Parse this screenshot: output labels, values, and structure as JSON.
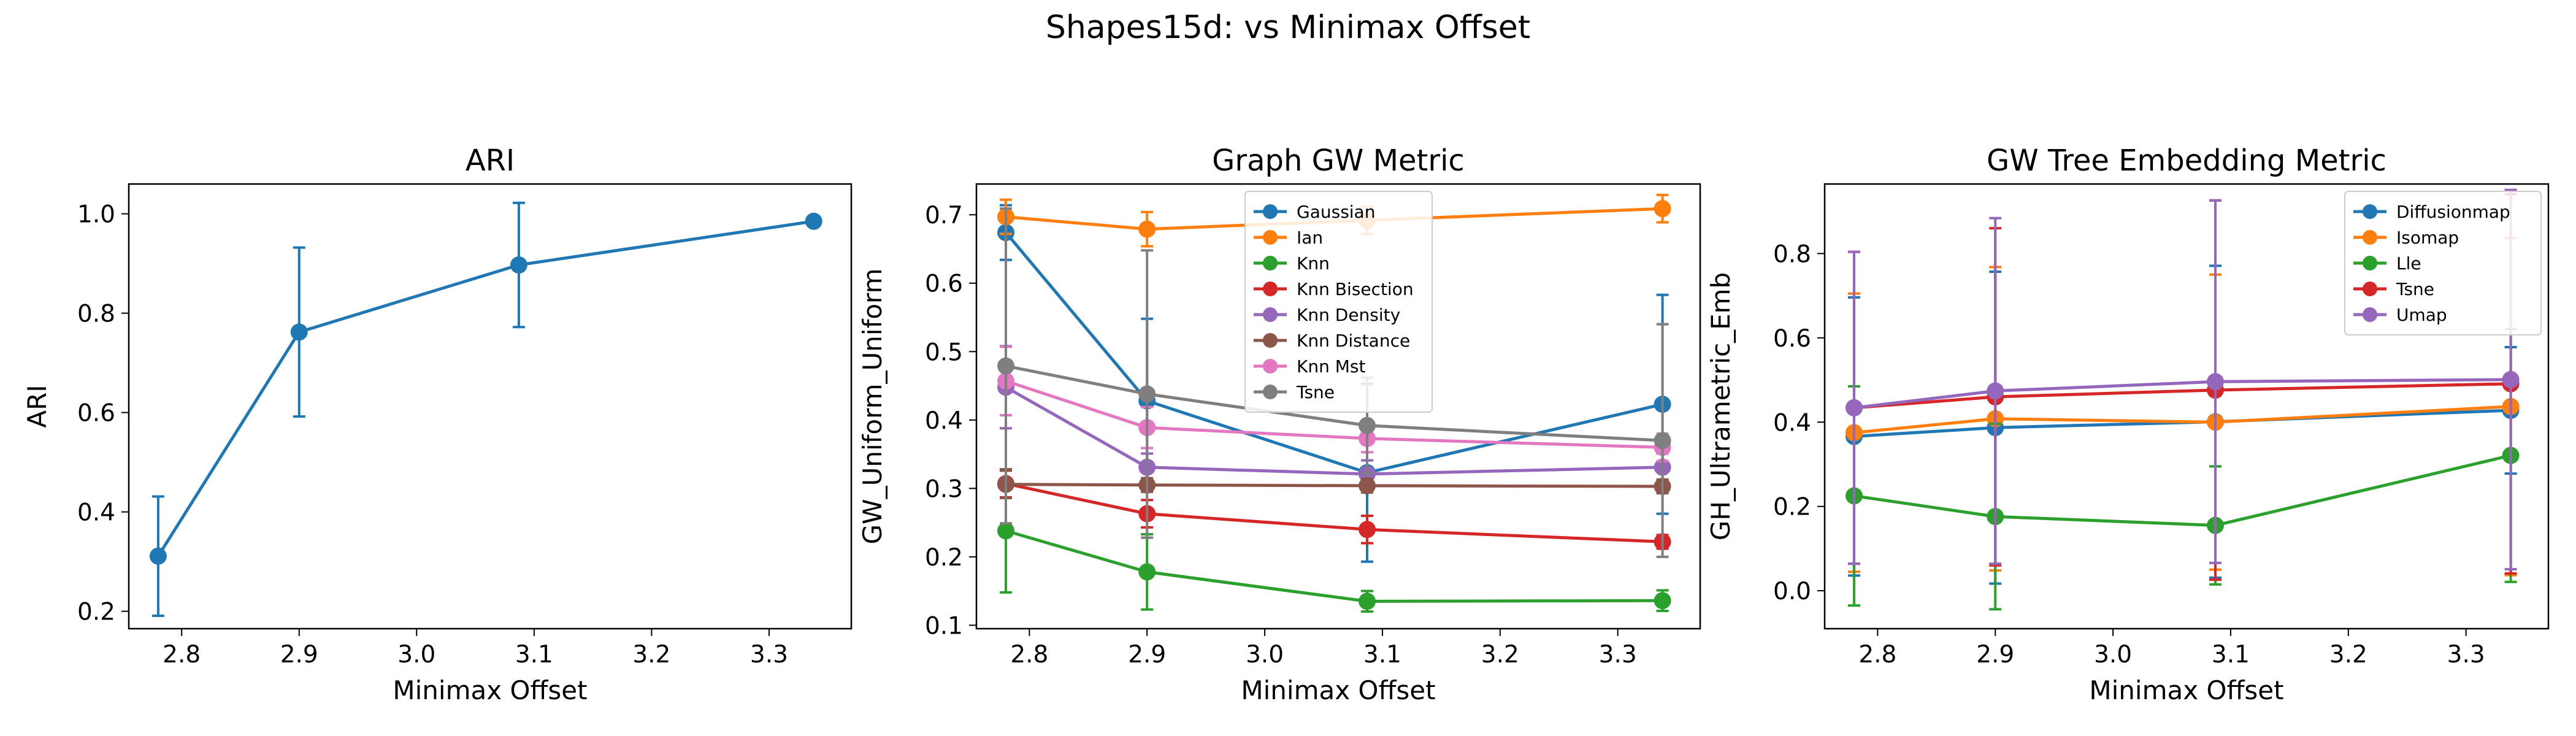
{
  "figure": {
    "suptitle": "Shapes15d: vs Minimax Offset"
  },
  "chart_data": [
    {
      "type": "line",
      "title": "ARI",
      "xlabel": "Minimax Offset",
      "ylabel": "ARI",
      "xlim": [
        2.755,
        3.37
      ],
      "ylim": [
        0.165,
        1.06
      ],
      "xticks": [
        "2.8",
        "2.9",
        "3.0",
        "3.1",
        "3.2",
        "3.3"
      ],
      "yticks": [
        "0.2",
        "0.4",
        "0.6",
        "0.8",
        "1.0"
      ],
      "legend": [],
      "series": [
        {
          "color": "#1f77b4",
          "x": [
            2.78,
            2.9,
            3.087,
            3.338
          ],
          "y": [
            0.311,
            0.762,
            0.897,
            0.985
          ],
          "err": [
            0.12,
            0.17,
            0.125,
            0.0
          ]
        }
      ]
    },
    {
      "type": "line",
      "title": "Graph GW Metric",
      "xlabel": "Minimax Offset",
      "ylabel": "GW_Uniform_Uniform",
      "xlim": [
        2.755,
        3.37
      ],
      "ylim": [
        0.095,
        0.745
      ],
      "xticks": [
        "2.8",
        "2.9",
        "3.0",
        "3.1",
        "3.2",
        "3.3"
      ],
      "yticks": [
        "0.1",
        "0.2",
        "0.3",
        "0.4",
        "0.5",
        "0.6",
        "0.7"
      ],
      "legend": [
        "Gaussian",
        "Ian",
        "Knn",
        "Knn Bisection",
        "Knn Density",
        "Knn Distance",
        "Knn Mst",
        "Tsne"
      ],
      "legend_position": "upper-center",
      "series": [
        {
          "name": "Gaussian",
          "color": "#1f77b4",
          "x": [
            2.78,
            2.9,
            3.087,
            3.338
          ],
          "y": [
            0.674,
            0.428,
            0.323,
            0.423
          ],
          "err": [
            0.04,
            0.12,
            0.13,
            0.16
          ]
        },
        {
          "name": "Ian",
          "color": "#ff7f0e",
          "x": [
            2.78,
            2.9,
            3.087,
            3.338
          ],
          "y": [
            0.697,
            0.679,
            0.692,
            0.709
          ],
          "err": [
            0.025,
            0.025,
            0.02,
            0.02
          ]
        },
        {
          "name": "Knn",
          "color": "#2ca02c",
          "x": [
            2.78,
            2.9,
            3.087,
            3.338
          ],
          "y": [
            0.238,
            0.178,
            0.135,
            0.136
          ],
          "err": [
            0.09,
            0.055,
            0.015,
            0.015
          ]
        },
        {
          "name": "Knn Bisection",
          "color": "#d62728",
          "x": [
            2.78,
            2.9,
            3.087,
            3.338
          ],
          "y": [
            0.307,
            0.263,
            0.24,
            0.222
          ],
          "err": [
            0.02,
            0.02,
            0.02,
            0.01
          ]
        },
        {
          "name": "Knn Density",
          "color": "#9467bd",
          "x": [
            2.78,
            2.9,
            3.087,
            3.338
          ],
          "y": [
            0.448,
            0.331,
            0.321,
            0.331
          ],
          "err": [
            0.06,
            0.02,
            0.02,
            0.02
          ]
        },
        {
          "name": "Knn Distance",
          "color": "#8c564b",
          "x": [
            2.78,
            2.9,
            3.087,
            3.338
          ],
          "y": [
            0.306,
            0.305,
            0.304,
            0.303
          ],
          "err": [
            0.02,
            0.01,
            0.01,
            0.01
          ]
        },
        {
          "name": "Knn Mst",
          "color": "#e377c2",
          "x": [
            2.78,
            2.9,
            3.087,
            3.338
          ],
          "y": [
            0.457,
            0.389,
            0.373,
            0.36
          ],
          "err": [
            0.05,
            0.03,
            0.02,
            0.02
          ]
        },
        {
          "name": "Tsne",
          "color": "#7f7f7f",
          "x": [
            2.78,
            2.9,
            3.087,
            3.338
          ],
          "y": [
            0.479,
            0.438,
            0.392,
            0.37
          ],
          "err": [
            0.23,
            0.21,
            0.07,
            0.17
          ]
        }
      ]
    },
    {
      "type": "line",
      "title": "GW Tree Embedding Metric",
      "xlabel": "Minimax Offset",
      "ylabel": "GH_Ultrametric_Emb",
      "xlim": [
        2.755,
        3.37
      ],
      "ylim": [
        -0.09,
        0.965
      ],
      "xticks": [
        "2.8",
        "2.9",
        "3.0",
        "3.1",
        "3.2",
        "3.3"
      ],
      "yticks": [
        "0.0",
        "0.2",
        "0.4",
        "0.6",
        "0.8"
      ],
      "legend": [
        "Diffusionmap",
        "Isomap",
        "Lle",
        "Tsne",
        "Umap"
      ],
      "legend_position": "upper-right",
      "series": [
        {
          "name": "Diffusionmap",
          "color": "#1f77b4",
          "x": [
            2.78,
            2.9,
            3.087,
            3.338
          ],
          "y": [
            0.366,
            0.387,
            0.401,
            0.428
          ],
          "err": [
            0.33,
            0.37,
            0.37,
            0.15
          ]
        },
        {
          "name": "Isomap",
          "color": "#ff7f0e",
          "x": [
            2.78,
            2.9,
            3.087,
            3.338
          ],
          "y": [
            0.375,
            0.408,
            0.4,
            0.437
          ],
          "err": [
            0.33,
            0.36,
            0.35,
            0.4
          ]
        },
        {
          "name": "Lle",
          "color": "#2ca02c",
          "x": [
            2.78,
            2.9,
            3.087,
            3.338
          ],
          "y": [
            0.225,
            0.176,
            0.155,
            0.321
          ],
          "err": [
            0.26,
            0.22,
            0.14,
            0.3
          ]
        },
        {
          "name": "Tsne",
          "color": "#d62728",
          "x": [
            2.78,
            2.9,
            3.087,
            3.338
          ],
          "y": [
            0.434,
            0.46,
            0.476,
            0.491
          ],
          "err": [
            0.37,
            0.4,
            0.45,
            0.45
          ]
        },
        {
          "name": "Umap",
          "color": "#9467bd",
          "x": [
            2.78,
            2.9,
            3.087,
            3.338
          ],
          "y": [
            0.434,
            0.474,
            0.496,
            0.501
          ],
          "err": [
            0.37,
            0.41,
            0.43,
            0.45
          ]
        }
      ]
    }
  ]
}
